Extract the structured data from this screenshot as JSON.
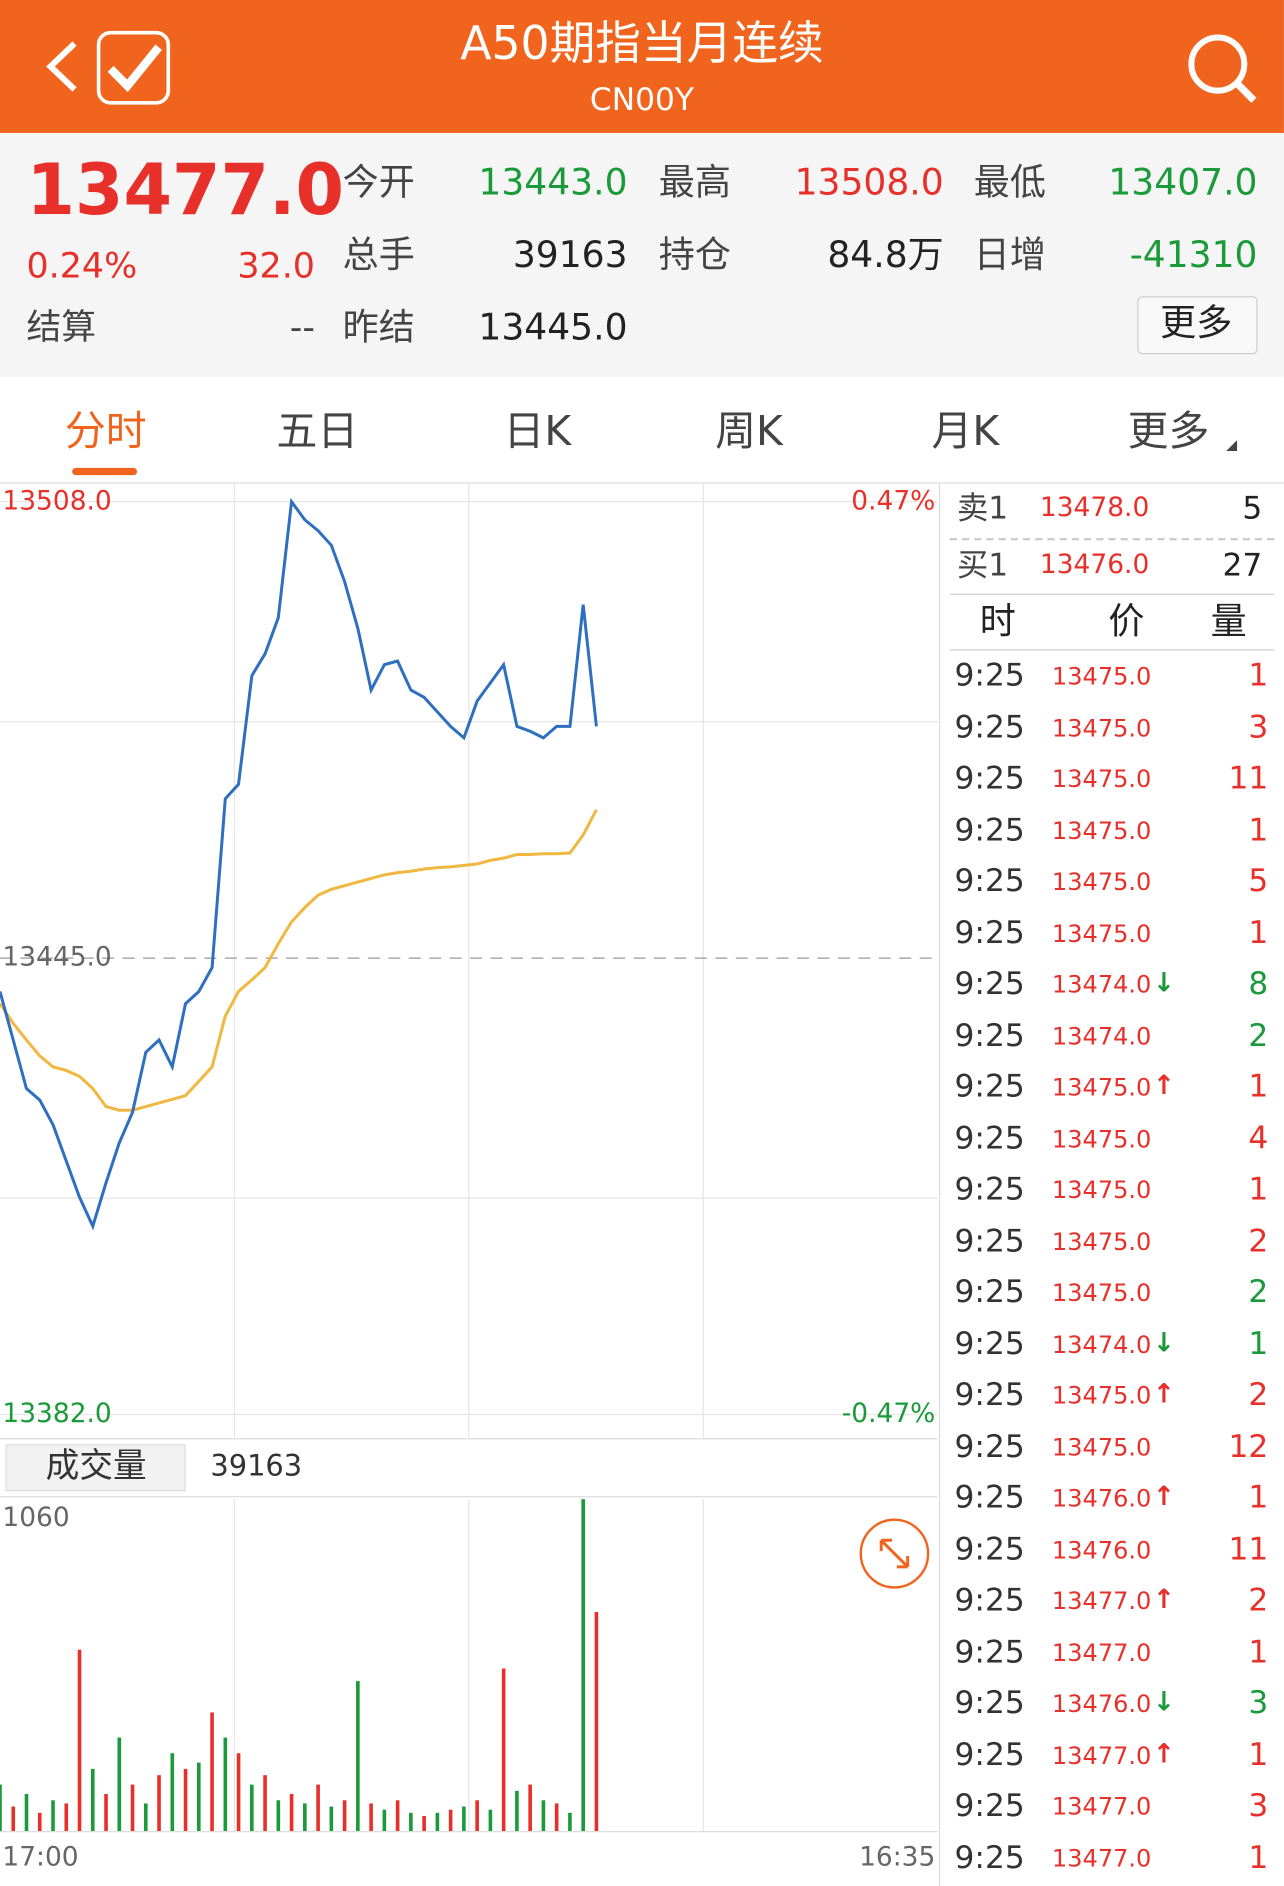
{
  "header": {
    "title": "A50期指当月连续",
    "code": "CN00Y"
  },
  "quote": {
    "price": "13477.0",
    "change_pct": "0.24%",
    "change": "32.0",
    "settle_label": "结算",
    "settle": "--",
    "fields": [
      {
        "label": "今开",
        "value": "13443.0",
        "color": "#1a9a3a"
      },
      {
        "label": "最高",
        "value": "13508.0",
        "color": "#e8302a"
      },
      {
        "label": "最低",
        "value": "13407.0",
        "color": "#1a9a3a"
      },
      {
        "label": "总手",
        "value": "39163",
        "color": "#222222"
      },
      {
        "label": "持仓",
        "value": "84.8万",
        "color": "#222222"
      },
      {
        "label": "日增",
        "value": "-41310",
        "color": "#1a9a3a"
      },
      {
        "label": "昨结",
        "value": "13445.0",
        "color": "#222222"
      }
    ],
    "more_button": "更多"
  },
  "tabs": {
    "items": [
      "分时",
      "五日",
      "日K",
      "周K",
      "月K",
      "更多"
    ],
    "active": 0
  },
  "chart_data": [
    {
      "type": "line",
      "x": [
        0,
        20,
        40,
        60,
        80,
        100,
        120,
        140,
        160,
        180,
        200,
        220,
        240,
        260,
        280,
        300,
        320,
        340,
        360,
        380,
        400,
        420,
        440,
        460,
        480,
        500,
        520,
        540,
        560,
        580,
        600,
        620,
        640,
        660,
        680,
        700,
        720,
        740,
        760,
        780,
        800,
        820,
        840,
        860,
        880,
        900
      ],
      "xlim": [
        0,
        1415
      ],
      "ylim": [
        13382,
        13508
      ],
      "yticks": [
        {
          "value": 13508,
          "label": "13508.0"
        },
        {
          "value": 13445,
          "label": "13445.0"
        },
        {
          "value": 13382,
          "label": "13382.0"
        }
      ],
      "y2lim": [
        -0.47,
        0.47
      ],
      "y2ticks": [
        {
          "value": 0.47,
          "label": "0.47%"
        },
        {
          "value": -0.47,
          "label": "-0.47%"
        }
      ],
      "series": [
        {
          "color": "#2f6fc0",
          "values": [
            13440.4,
            13433.7,
            13427,
            13425.4,
            13422,
            13417,
            13412,
            13408,
            13414,
            13419.5,
            13423.7,
            13432,
            13433.7,
            13430,
            13438.7,
            13440.4,
            13443.7,
            13467,
            13469,
            13484,
            13487,
            13492,
            13508,
            13505.5,
            13504,
            13502,
            13497,
            13490.5,
            13482,
            13485.5,
            13486,
            13482,
            13481,
            13479,
            13477,
            13475.4,
            13480.5,
            13483,
            13485.5,
            13477,
            13476.3,
            13475.4,
            13477,
            13477,
            13493.8,
            13477
          ]
        },
        {
          "color": "#f0b840",
          "values": [
            13438.7,
            13436,
            13433.7,
            13431.5,
            13430,
            13429.5,
            13428.7,
            13427,
            13424.5,
            13424,
            13424,
            13424.5,
            13425,
            13425.5,
            13426,
            13428,
            13430,
            13437,
            13440.4,
            13442,
            13443.7,
            13447,
            13450,
            13452,
            13453.7,
            13454.5,
            13455,
            13455.5,
            13456,
            13456.5,
            13456.8,
            13457,
            13457.3,
            13457.5,
            13457.6,
            13457.8,
            13458,
            13458.5,
            13458.8,
            13459.3,
            13459.3,
            13459.4,
            13459.4,
            13459.5,
            13462,
            13465.5
          ]
        }
      ]
    },
    {
      "type": "bar",
      "title": "成交量",
      "total": "39163",
      "x": [
        0,
        20,
        40,
        60,
        80,
        100,
        120,
        140,
        160,
        180,
        200,
        220,
        240,
        260,
        280,
        300,
        320,
        340,
        360,
        380,
        400,
        420,
        440,
        460,
        480,
        500,
        520,
        540,
        560,
        580,
        600,
        620,
        640,
        660,
        680,
        700,
        720,
        740,
        760,
        780,
        800,
        820,
        840,
        860,
        880,
        900
      ],
      "xlim": [
        0,
        1415
      ],
      "xticks": [
        {
          "value": 0,
          "label": "17:00"
        },
        {
          "value": 1415,
          "label": "16:35"
        }
      ],
      "ylim": [
        0,
        1060
      ],
      "yticks": [
        1060
      ],
      "values": [
        150,
        80,
        120,
        60,
        100,
        90,
        580,
        200,
        120,
        300,
        150,
        90,
        180,
        250,
        200,
        220,
        380,
        300,
        250,
        150,
        180,
        100,
        120,
        90,
        150,
        80,
        100,
        480,
        90,
        70,
        100,
        60,
        50,
        60,
        70,
        80,
        100,
        70,
        520,
        130,
        150,
        100,
        90,
        60,
        1060,
        700
      ],
      "colors": [
        "#1a9a3a",
        "#e8302a",
        "#1a9a3a",
        "#e8302a",
        "#1a9a3a",
        "#e8302a",
        "#e8302a",
        "#1a9a3a",
        "#e8302a",
        "#1a9a3a",
        "#e8302a",
        "#1a9a3a",
        "#e8302a",
        "#1a9a3a",
        "#e8302a",
        "#1a9a3a",
        "#e8302a",
        "#1a9a3a",
        "#e8302a",
        "#1a9a3a",
        "#e8302a",
        "#1a9a3a",
        "#e8302a",
        "#1a9a3a",
        "#e8302a",
        "#1a9a3a",
        "#e8302a",
        "#1a9a3a",
        "#e8302a",
        "#1a9a3a",
        "#e8302a",
        "#1a9a3a",
        "#e8302a",
        "#1a9a3a",
        "#e8302a",
        "#1a9a3a",
        "#e8302a",
        "#1a9a3a",
        "#e8302a",
        "#1a9a3a",
        "#e8302a",
        "#1a9a3a",
        "#e8302a",
        "#1a9a3a",
        "#1a9a3a",
        "#e8302a"
      ]
    }
  ],
  "order_book": {
    "ask": {
      "label": "卖1",
      "price": "13478.0",
      "qty": "5"
    },
    "bid": {
      "label": "买1",
      "price": "13476.0",
      "qty": "27"
    }
  },
  "trades": {
    "header": [
      "时",
      "价",
      "量"
    ],
    "rows": [
      {
        "time": "9:25",
        "price": "13475.0",
        "qty": "1",
        "color": "#e8302a"
      },
      {
        "time": "9:25",
        "price": "13475.0",
        "qty": "3",
        "color": "#e8302a"
      },
      {
        "time": "9:25",
        "price": "13475.0",
        "qty": "11",
        "color": "#e8302a"
      },
      {
        "time": "9:25",
        "price": "13475.0",
        "qty": "1",
        "color": "#e8302a"
      },
      {
        "time": "9:25",
        "price": "13475.0",
        "qty": "5",
        "color": "#e8302a"
      },
      {
        "time": "9:25",
        "price": "13475.0",
        "qty": "1",
        "color": "#e8302a"
      },
      {
        "time": "9:25",
        "price": "13474.0",
        "arrow": "↓",
        "qty": "8",
        "color": "#1a9a3a"
      },
      {
        "time": "9:25",
        "price": "13474.0",
        "qty": "2",
        "color": "#1a9a3a"
      },
      {
        "time": "9:25",
        "price": "13475.0",
        "arrow": "↑",
        "qty": "1",
        "color": "#e8302a"
      },
      {
        "time": "9:25",
        "price": "13475.0",
        "qty": "4",
        "color": "#e8302a"
      },
      {
        "time": "9:25",
        "price": "13475.0",
        "qty": "1",
        "color": "#e8302a"
      },
      {
        "time": "9:25",
        "price": "13475.0",
        "qty": "2",
        "color": "#e8302a"
      },
      {
        "time": "9:25",
        "price": "13475.0",
        "qty": "2",
        "color": "#1a9a3a"
      },
      {
        "time": "9:25",
        "price": "13474.0",
        "arrow": "↓",
        "qty": "1",
        "color": "#1a9a3a"
      },
      {
        "time": "9:25",
        "price": "13475.0",
        "arrow": "↑",
        "qty": "2",
        "color": "#e8302a"
      },
      {
        "time": "9:25",
        "price": "13475.0",
        "qty": "12",
        "color": "#e8302a"
      },
      {
        "time": "9:25",
        "price": "13476.0",
        "arrow": "↑",
        "qty": "1",
        "color": "#e8302a"
      },
      {
        "time": "9:25",
        "price": "13476.0",
        "qty": "11",
        "color": "#e8302a"
      },
      {
        "time": "9:25",
        "price": "13477.0",
        "arrow": "↑",
        "qty": "2",
        "color": "#e8302a"
      },
      {
        "time": "9:25",
        "price": "13477.0",
        "qty": "1",
        "color": "#e8302a"
      },
      {
        "time": "9:25",
        "price": "13476.0",
        "arrow": "↓",
        "qty": "3",
        "color": "#1a9a3a"
      },
      {
        "time": "9:25",
        "price": "13477.0",
        "arrow": "↑",
        "qty": "1",
        "color": "#e8302a"
      },
      {
        "time": "9:25",
        "price": "13477.0",
        "qty": "3",
        "color": "#e8302a"
      },
      {
        "time": "9:25",
        "price": "13477.0",
        "qty": "1",
        "color": "#e8302a"
      }
    ]
  }
}
